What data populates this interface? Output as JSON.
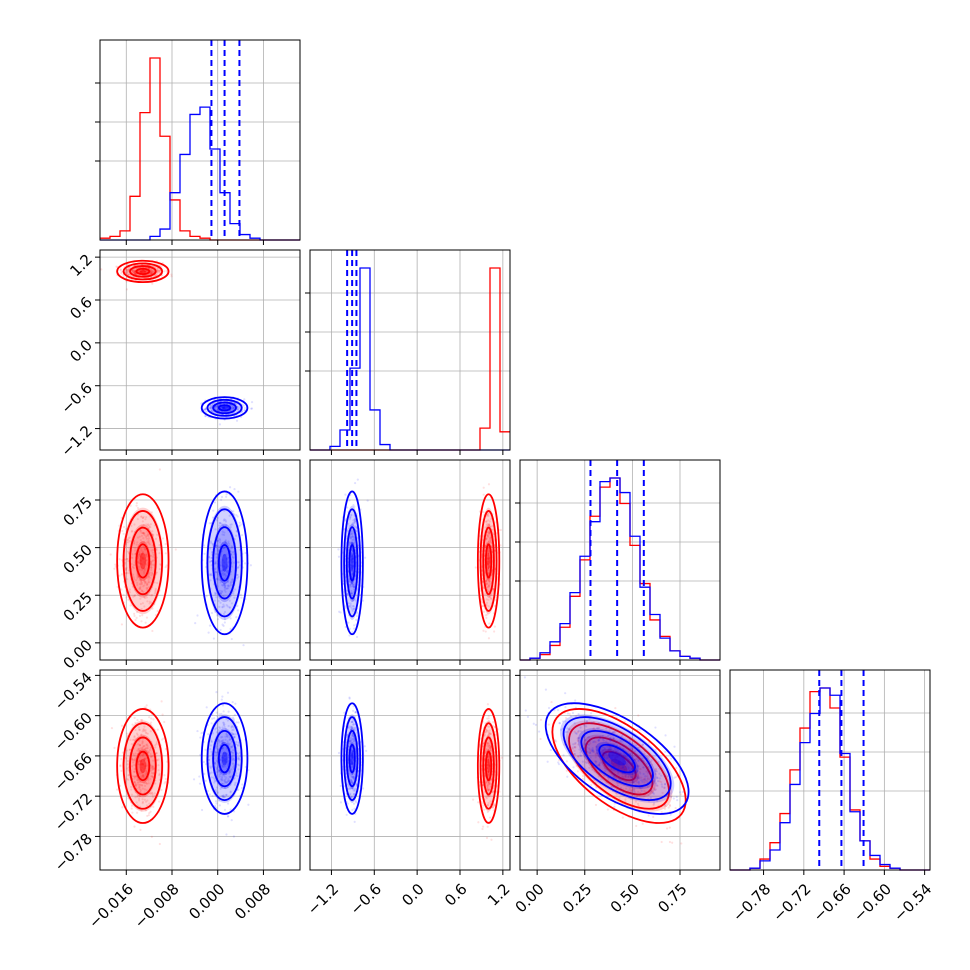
{
  "figure": {
    "type": "corner-plot",
    "colors": {
      "series_a": "#ff0000",
      "series_b": "#0000ff",
      "grid": "#b0b0b0",
      "frame": "#000000"
    }
  },
  "chart_data": {
    "type": "corner",
    "parameters": [
      {
        "range": [
          -0.0206,
          0.0144
        ],
        "ticks": [
          -0.016,
          -0.008,
          0.0,
          0.008
        ],
        "tick_labels": [
          "−0.016",
          "−0.008",
          "0.000",
          "0.008"
        ]
      },
      {
        "range": [
          -1.5,
          1.3
        ],
        "ticks": [
          -1.2,
          -0.6,
          0.0,
          0.6,
          1.2
        ],
        "tick_labels": [
          "−1.2",
          "−0.6",
          "0.0",
          "0.6",
          "1.2"
        ]
      },
      {
        "range": [
          -0.09,
          0.96
        ],
        "ticks": [
          0.0,
          0.25,
          0.5,
          0.75
        ],
        "tick_labels": [
          "0.00",
          "0.25",
          "0.50",
          "0.75"
        ]
      },
      {
        "range": [
          -0.83,
          -0.532
        ],
        "ticks": [
          -0.78,
          -0.72,
          -0.66,
          -0.6,
          -0.54
        ],
        "tick_labels": [
          "−0.78",
          "−0.72",
          "−0.66",
          "−0.60",
          "−0.54"
        ]
      }
    ],
    "series": [
      {
        "color": "#ff0000",
        "means": [
          -0.0131,
          1.0,
          0.43,
          -0.675
        ],
        "sigmas": [
          0.0018,
          0.06,
          0.14,
          0.034
        ],
        "correlations": [
          [
            2,
            3,
            -0.6
          ]
        ],
        "hist": [
          [
            0.01,
            0.02,
            0.05,
            0.24,
            0.7,
            1.0,
            0.57,
            0.22,
            0.05,
            0.02,
            0.01,
            0,
            0,
            0,
            0,
            0,
            0,
            0,
            0,
            0
          ],
          [
            0,
            0,
            0,
            0,
            0,
            0,
            0,
            0,
            0,
            0,
            0,
            0,
            0,
            0,
            0,
            0,
            0,
            0.12,
            1.0,
            0.1
          ],
          [
            0,
            0.01,
            0.03,
            0.08,
            0.18,
            0.35,
            0.55,
            0.79,
            0.95,
            1.0,
            0.86,
            0.63,
            0.42,
            0.22,
            0.13,
            0.05,
            0.02,
            0.01,
            0,
            0
          ],
          [
            0,
            0,
            0.01,
            0.06,
            0.15,
            0.31,
            0.55,
            0.78,
            0.98,
            1.0,
            0.89,
            0.62,
            0.33,
            0.16,
            0.06,
            0.02,
            0.01,
            0,
            0,
            0
          ]
        ]
      },
      {
        "color": "#0000ff",
        "means": [
          0.0012,
          -0.91,
          0.42,
          -0.664
        ],
        "sigmas": [
          0.0016,
          0.06,
          0.15,
          0.033
        ],
        "correlations": [
          [
            2,
            3,
            -0.6
          ]
        ],
        "hist": [
          [
            0,
            0,
            0,
            0,
            0,
            0.02,
            0.06,
            0.26,
            0.47,
            0.69,
            0.73,
            0.5,
            0.26,
            0.09,
            0.03,
            0.01,
            0,
            0,
            0,
            0
          ],
          [
            0,
            0,
            0.02,
            0.11,
            0.45,
            1.0,
            0.22,
            0.03,
            0,
            0,
            0,
            0,
            0,
            0,
            0,
            0,
            0,
            0,
            0,
            0
          ],
          [
            0,
            0.01,
            0.04,
            0.1,
            0.2,
            0.37,
            0.57,
            0.76,
            0.98,
            1.0,
            0.92,
            0.68,
            0.4,
            0.25,
            0.12,
            0.05,
            0.02,
            0.01,
            0,
            0
          ],
          [
            0,
            0,
            0.01,
            0.05,
            0.11,
            0.26,
            0.47,
            0.7,
            0.86,
            1.0,
            0.96,
            0.64,
            0.32,
            0.16,
            0.08,
            0.03,
            0.01,
            0,
            0,
            0
          ]
        ]
      }
    ],
    "quantile_lines": [
      [
        -0.0011,
        0.0012,
        0.0038
      ],
      [
        -0.98,
        -0.91,
        -0.85
      ],
      [
        0.28,
        0.42,
        0.56
      ],
      [
        -0.697,
        -0.664,
        -0.631
      ]
    ],
    "grid": true
  }
}
